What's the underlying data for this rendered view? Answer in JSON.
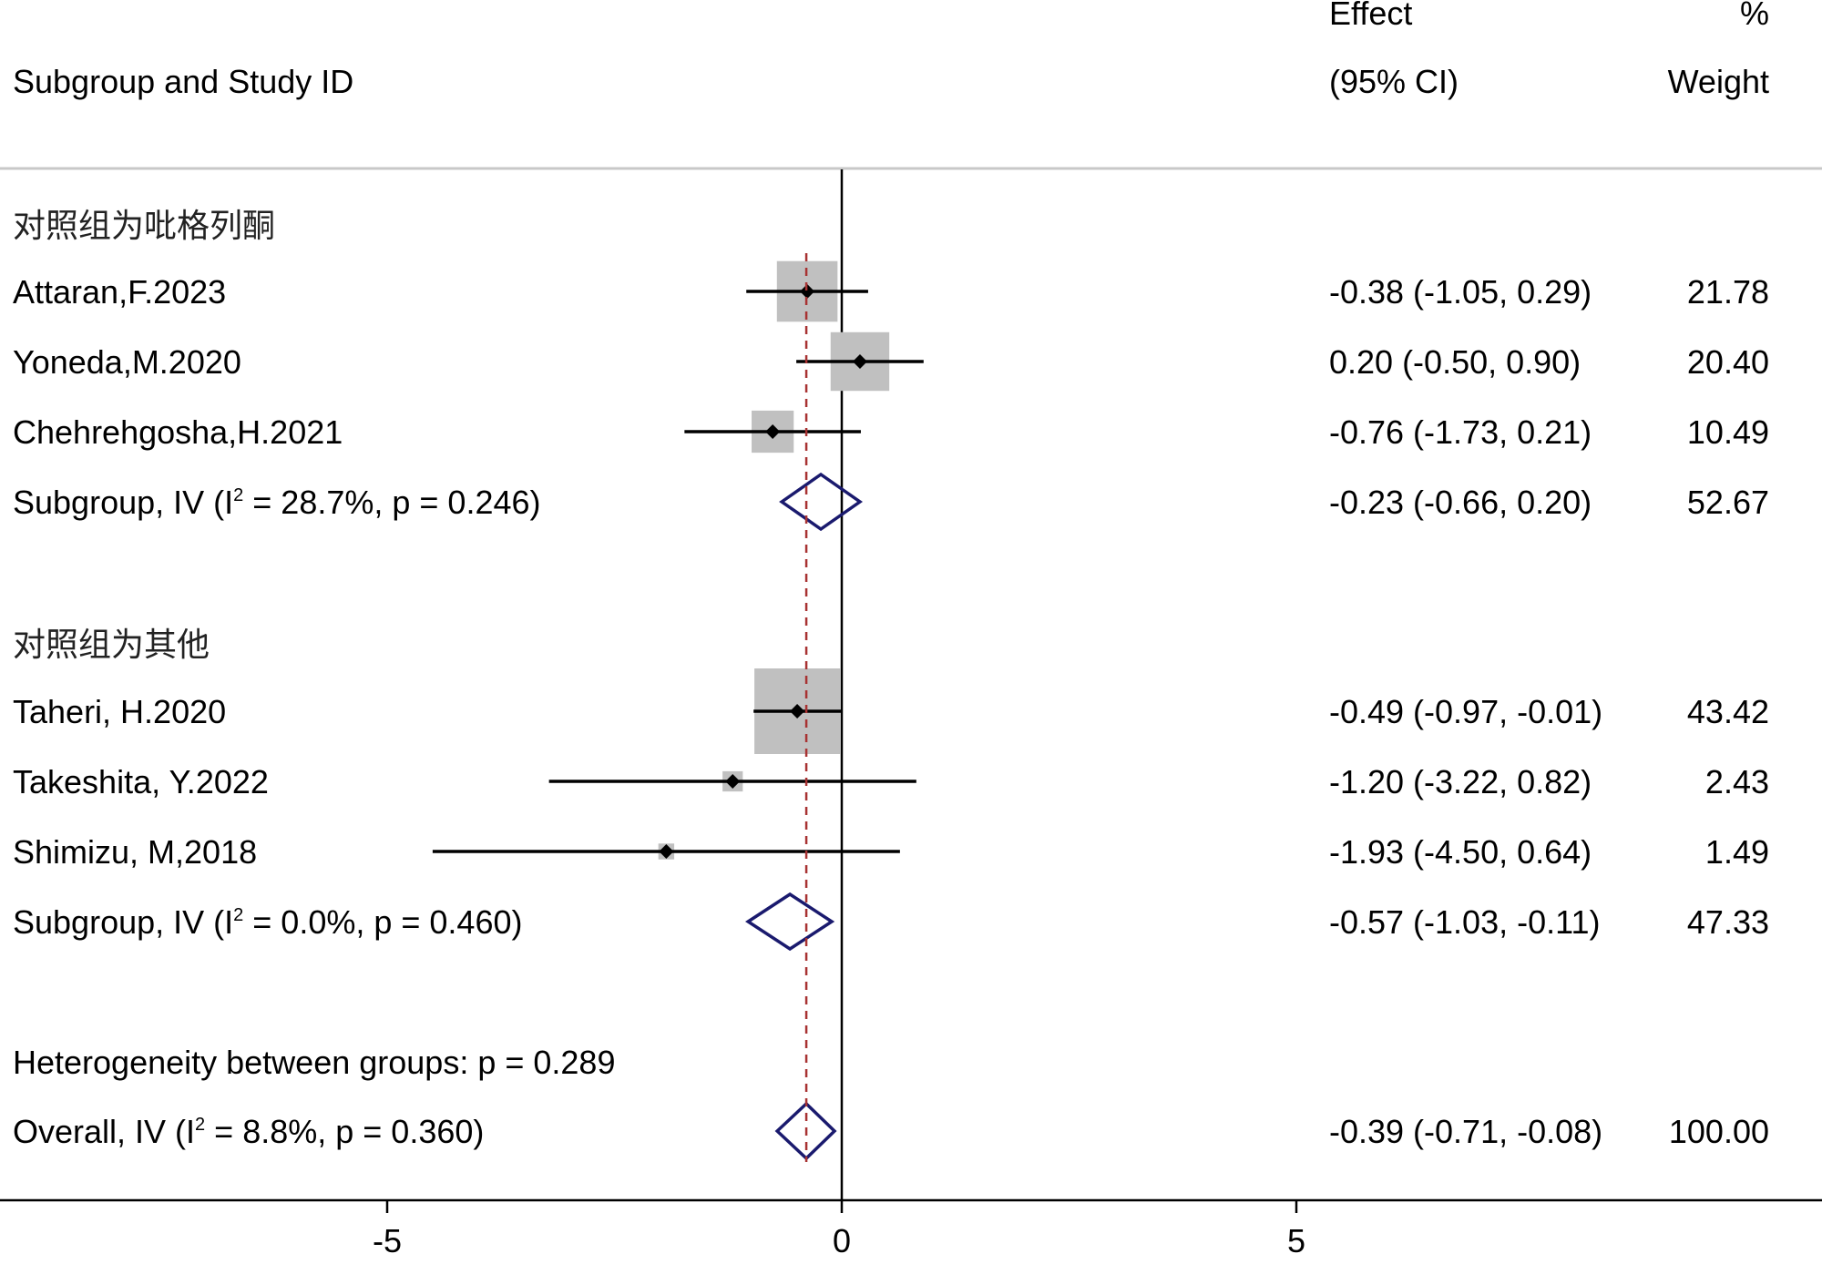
{
  "header": {
    "study_col": "Subgroup and Study ID",
    "effect_line1": "Effect",
    "effect_line2": "(95% CI)",
    "weight_line1": "%",
    "weight_line2": "Weight"
  },
  "chart_data": {
    "type": "forest",
    "xlim": [
      -9.3,
      10.6
    ],
    "xticks": [
      -5,
      0,
      5
    ],
    "xtick_labels": [
      "-5",
      "0",
      "5"
    ],
    "null_line": 0,
    "overall_effect_line": -0.39,
    "groups": [
      {
        "label": "对照组为吡格列酮",
        "studies": [
          {
            "name": "Attaran,F.2023",
            "effect": -0.38,
            "lo": -1.05,
            "hi": 0.29,
            "ci_text": "-0.38 (-1.05, 0.29)",
            "weight": "21.78",
            "w": 21.78
          },
          {
            "name": "Yoneda,M.2020",
            "effect": 0.2,
            "lo": -0.5,
            "hi": 0.9,
            "ci_text": "0.20 (-0.50, 0.90)",
            "weight": "20.40",
            "w": 20.4
          },
          {
            "name": "Chehrehgosha,H.2021",
            "effect": -0.76,
            "lo": -1.73,
            "hi": 0.21,
            "ci_text": "-0.76 (-1.73, 0.21)",
            "weight": "10.49",
            "w": 10.49
          }
        ],
        "subtotal": {
          "prefix": "Subgroup, IV (I",
          "sup": "2",
          "suffix": " = 28.7%, p = 0.246)",
          "effect": -0.23,
          "lo": -0.66,
          "hi": 0.2,
          "ci_text": "-0.23 (-0.66, 0.20)",
          "weight": "52.67"
        }
      },
      {
        "label": "对照组为其他",
        "studies": [
          {
            "name": "Taheri, H.2020",
            "effect": -0.49,
            "lo": -0.97,
            "hi": -0.01,
            "ci_text": "-0.49 (-0.97, -0.01)",
            "weight": "43.42",
            "w": 43.42
          },
          {
            "name": "Takeshita, Y.2022",
            "effect": -1.2,
            "lo": -3.22,
            "hi": 0.82,
            "ci_text": "-1.20 (-3.22, 0.82)",
            "weight": "2.43",
            "w": 2.43
          },
          {
            "name": "Shimizu, M,2018",
            "effect": -1.93,
            "lo": -4.5,
            "hi": 0.64,
            "ci_text": "-1.93 (-4.50, 0.64)",
            "weight": "1.49",
            "w": 1.49
          }
        ],
        "subtotal": {
          "prefix": "Subgroup, IV (I",
          "sup": "2",
          "suffix": " = 0.0%, p = 0.460)",
          "effect": -0.57,
          "lo": -1.03,
          "hi": -0.11,
          "ci_text": "-0.57 (-1.03, -0.11)",
          "weight": "47.33"
        }
      }
    ],
    "heterogeneity": "Heterogeneity between groups: p = 0.289",
    "overall": {
      "prefix": "Overall, IV (I",
      "sup": "2",
      "suffix": " = 8.8%, p = 0.360)",
      "effect": -0.39,
      "lo": -0.71,
      "hi": -0.08,
      "ci_text": "-0.39 (-0.71, -0.08)",
      "weight": "100.00"
    }
  },
  "colors": {
    "box": "#c0c0c0",
    "diamond": "#1a1a6e",
    "overall_line": "#a83232",
    "axis": "#000000",
    "separator": "#c8c8c8"
  }
}
